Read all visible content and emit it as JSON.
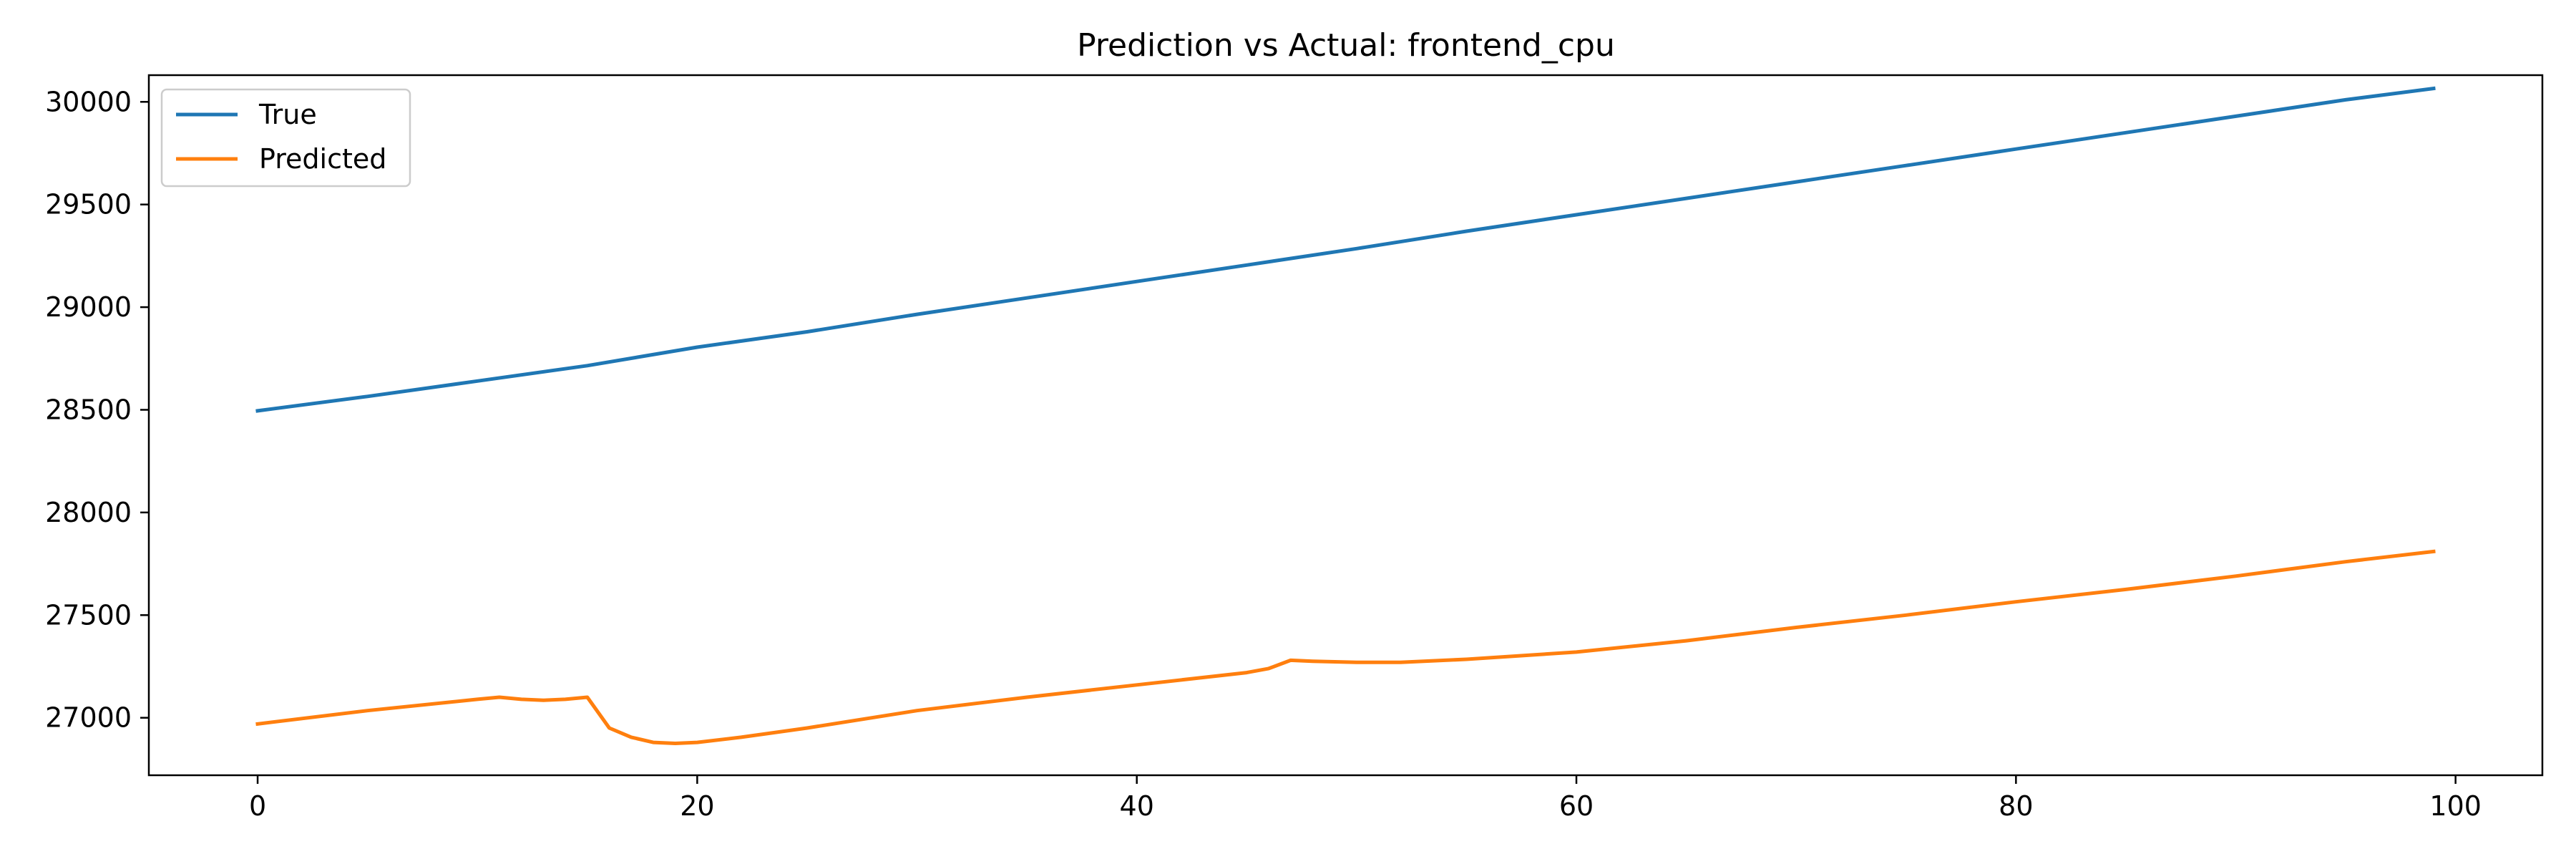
{
  "chart_data": {
    "type": "line",
    "title": "Prediction vs Actual: frontend_cpu",
    "xlabel": "",
    "ylabel": "",
    "xlim": [
      -4.95,
      103.95
    ],
    "ylim": [
      26720,
      30130
    ],
    "xticks": [
      0,
      20,
      40,
      60,
      80,
      100
    ],
    "yticks": [
      27000,
      27500,
      28000,
      28500,
      29000,
      29500,
      30000
    ],
    "grid": false,
    "legend_position": "upper left",
    "series": [
      {
        "name": "True",
        "color": "#1f77b4",
        "points": [
          [
            0,
            28495
          ],
          [
            5,
            28565
          ],
          [
            10,
            28640
          ],
          [
            15,
            28715
          ],
          [
            20,
            28805
          ],
          [
            25,
            28880
          ],
          [
            30,
            28965
          ],
          [
            35,
            29045
          ],
          [
            40,
            29125
          ],
          [
            45,
            29205
          ],
          [
            50,
            29285
          ],
          [
            55,
            29370
          ],
          [
            60,
            29450
          ],
          [
            65,
            29530
          ],
          [
            70,
            29610
          ],
          [
            75,
            29690
          ],
          [
            80,
            29770
          ],
          [
            85,
            29850
          ],
          [
            90,
            29930
          ],
          [
            95,
            30010
          ],
          [
            99,
            30065
          ]
        ]
      },
      {
        "name": "Predicted",
        "color": "#ff7f0e",
        "points": [
          [
            0,
            26970
          ],
          [
            5,
            27035
          ],
          [
            10,
            27090
          ],
          [
            11,
            27100
          ],
          [
            12,
            27090
          ],
          [
            13,
            27085
          ],
          [
            14,
            27090
          ],
          [
            15,
            27100
          ],
          [
            16,
            26950
          ],
          [
            17,
            26905
          ],
          [
            18,
            26880
          ],
          [
            19,
            26875
          ],
          [
            20,
            26880
          ],
          [
            22,
            26905
          ],
          [
            25,
            26950
          ],
          [
            30,
            27035
          ],
          [
            35,
            27100
          ],
          [
            40,
            27160
          ],
          [
            45,
            27220
          ],
          [
            46,
            27240
          ],
          [
            47,
            27280
          ],
          [
            48,
            27275
          ],
          [
            50,
            27270
          ],
          [
            52,
            27270
          ],
          [
            55,
            27285
          ],
          [
            60,
            27320
          ],
          [
            65,
            27375
          ],
          [
            70,
            27440
          ],
          [
            75,
            27500
          ],
          [
            80,
            27565
          ],
          [
            85,
            27625
          ],
          [
            90,
            27690
          ],
          [
            95,
            27760
          ],
          [
            99,
            27810
          ]
        ]
      }
    ]
  }
}
